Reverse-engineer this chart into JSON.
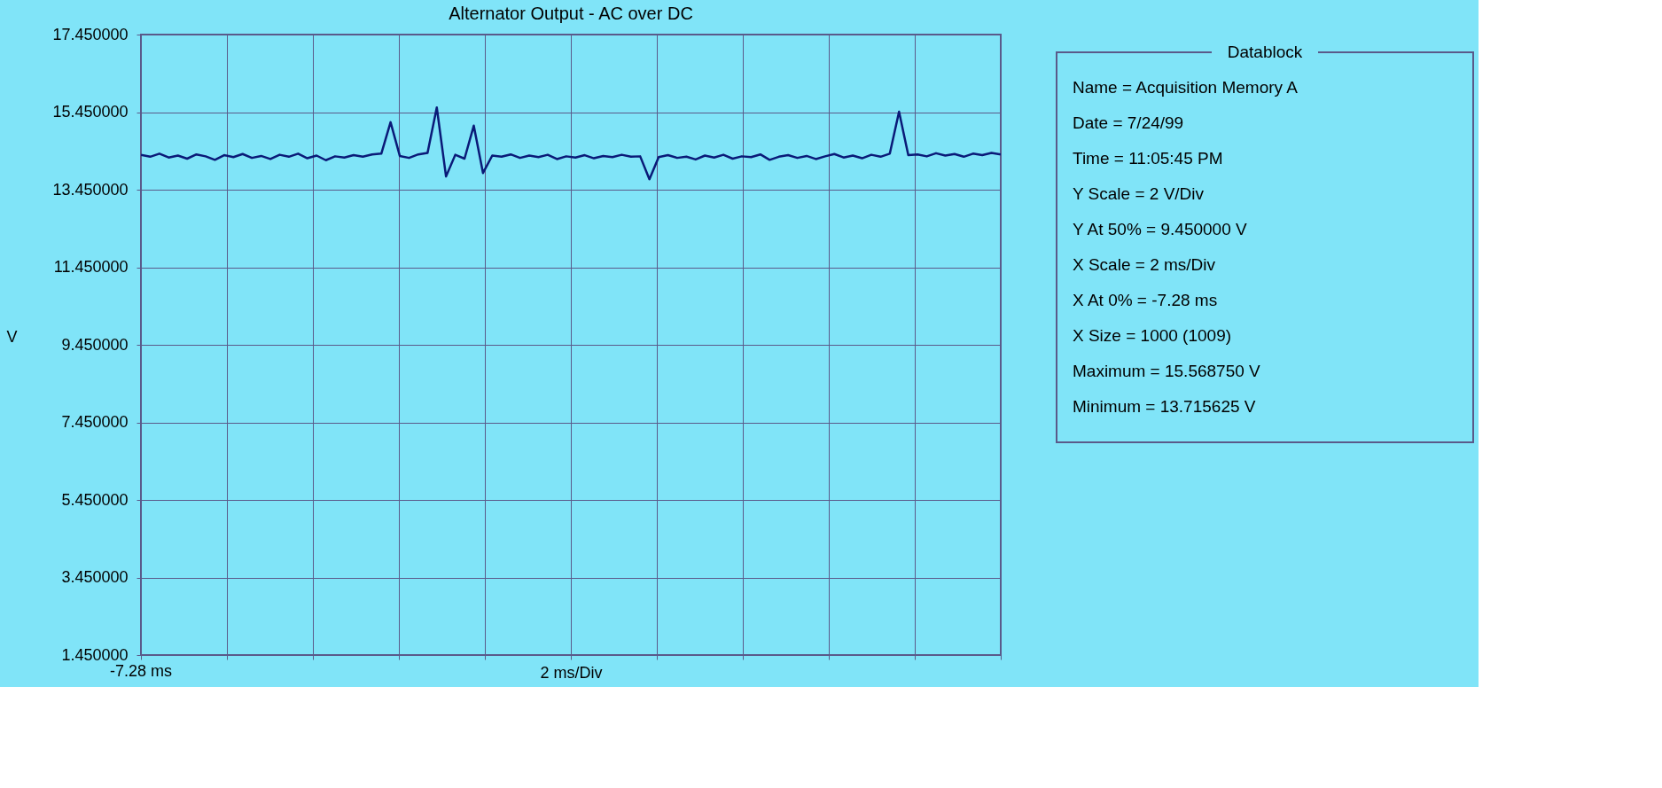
{
  "chart_data": {
    "type": "line",
    "title": "Alternator Output - AC over DC",
    "xlabel": "2 ms/Div",
    "ylabel": "V",
    "categories": [
      null,
      null,
      null,
      null,
      null,
      null,
      null,
      null,
      null,
      null,
      null,
      null,
      null,
      null,
      null,
      null,
      null,
      null,
      null,
      null,
      null,
      null,
      null,
      null,
      null,
      null,
      null,
      null,
      null,
      null,
      null,
      null,
      null,
      null,
      null,
      null,
      null,
      null,
      null,
      null,
      null,
      null,
      null,
      null,
      null,
      null,
      null,
      null,
      null,
      null,
      null,
      null,
      null,
      null,
      null,
      null,
      null,
      null,
      null,
      null,
      null,
      null,
      null,
      null,
      null,
      null,
      null,
      null,
      null,
      null,
      null,
      null,
      null,
      null,
      null,
      null,
      null,
      null,
      null,
      null,
      null,
      null,
      null,
      null,
      null,
      null,
      null,
      null,
      null,
      null,
      null,
      null,
      null,
      null
    ],
    "series": [
      {
        "color": "#0a1a78",
        "values": [
          14.35,
          14.3,
          14.38,
          14.28,
          14.33,
          14.25,
          14.36,
          14.31,
          14.22,
          14.34,
          14.29,
          14.37,
          14.27,
          14.32,
          14.24,
          14.35,
          14.3,
          14.38,
          14.26,
          14.33,
          14.21,
          14.31,
          14.28,
          14.34,
          14.3,
          14.36,
          14.38,
          15.19,
          14.32,
          14.27,
          14.36,
          14.4,
          15.57,
          13.79,
          14.35,
          14.25,
          15.1,
          13.88,
          14.33,
          14.3,
          14.36,
          14.27,
          14.33,
          14.29,
          14.35,
          14.24,
          14.31,
          14.28,
          14.34,
          14.26,
          14.32,
          14.29,
          14.35,
          14.3,
          14.31,
          13.72,
          14.29,
          14.34,
          14.27,
          14.3,
          14.23,
          14.33,
          14.28,
          14.35,
          14.25,
          14.31,
          14.29,
          14.36,
          14.22,
          14.3,
          14.34,
          14.27,
          14.32,
          14.24,
          14.31,
          14.37,
          14.28,
          14.33,
          14.26,
          14.35,
          14.3,
          14.38,
          15.46,
          14.34,
          14.36,
          14.31,
          14.39,
          14.33,
          14.37,
          14.3,
          14.38,
          14.34,
          14.4,
          14.36
        ]
      }
    ],
    "ylim": [
      1.45,
      17.45
    ],
    "yticks": [
      {
        "value": 1.45,
        "label": "1.450000"
      },
      {
        "value": 3.45,
        "label": "3.450000"
      },
      {
        "value": 5.45,
        "label": "5.450000"
      },
      {
        "value": 7.45,
        "label": "7.450000"
      },
      {
        "value": 9.45,
        "label": "9.450000"
      },
      {
        "value": 11.45,
        "label": "11.450000"
      },
      {
        "value": 13.45,
        "label": "13.450000"
      },
      {
        "value": 15.45,
        "label": "15.450000"
      },
      {
        "value": 17.45,
        "label": "17.450000"
      }
    ],
    "grid": true,
    "marker": "none",
    "line_style": "solid",
    "annotations": [
      "-7.28 ms",
      "Datablock",
      "Name = Acquisition Memory A",
      "Date = 7/24/99",
      "Time = 11:05:45 PM",
      "Y Scale = 2 V/Div",
      "Y At 50% = 9.450000 V",
      "X Scale = 2 ms/Div",
      "X At 0% = -7.28 ms",
      "X Size = 1000 (1009)",
      "Maximum = 15.568750 V",
      "Minimum = 13.715625 V"
    ]
  }
}
